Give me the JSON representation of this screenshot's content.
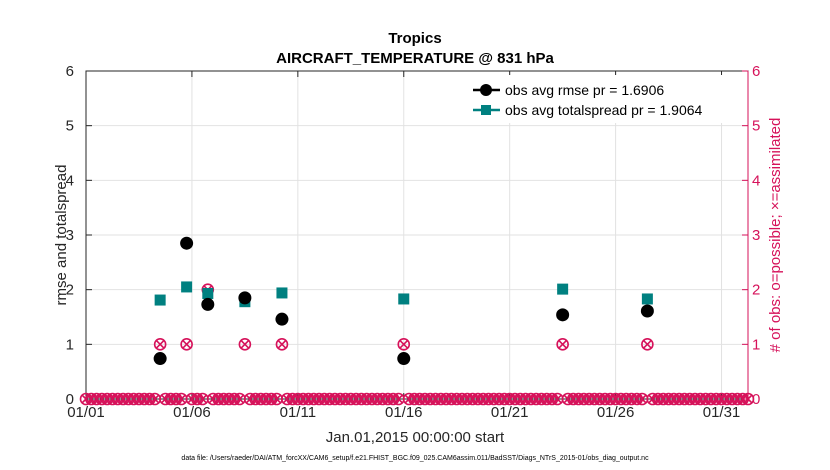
{
  "chart_data": {
    "type": "scatter",
    "title": "Tropics",
    "subtitle": "AIRCRAFT_TEMPERATURE @ 831 hPa",
    "xlabel": "Jan.01,2015 00:00:00 start",
    "ylabel": "rmse and totalspread",
    "ylabel_right": "# of obs: o=possible; ×=assimilated",
    "footnote": "data file: /Users/raeder/DAI/ATM_forcXX/CAM6_setup/f.e21.FHIST_BGC.f09_025.CAM6assim.011/BadSST/Diags_NTrS_2015-01/obs_diag_output.nc",
    "xlim": [
      0,
      31.25
    ],
    "ylim": [
      0,
      6
    ],
    "ylim_right": [
      0,
      6
    ],
    "xticks": [
      0,
      5,
      10,
      15,
      20,
      25,
      30
    ],
    "xtick_labels": [
      "01/01",
      "01/06",
      "01/11",
      "01/16",
      "01/21",
      "01/26",
      "01/31"
    ],
    "yticks": [
      0,
      1,
      2,
      3,
      4,
      5,
      6
    ],
    "ytick_labels": [
      "0",
      "1",
      "2",
      "3",
      "4",
      "5",
      "6"
    ],
    "grid": true,
    "legend_position": "top-right",
    "colors": {
      "rmse": "#000000",
      "totalspread": "#008080",
      "obs": "#d6125a"
    },
    "series": [
      {
        "name": "obs avg rmse",
        "legend_label": "obs avg rmse pr = 1.6906",
        "points": [
          [
            3.5,
            0.74
          ],
          [
            4.75,
            2.85
          ],
          [
            5.75,
            1.73
          ],
          [
            7.5,
            1.85
          ],
          [
            9.25,
            1.46
          ],
          [
            15.0,
            0.74
          ],
          [
            22.5,
            1.54
          ],
          [
            26.5,
            1.61
          ]
        ]
      },
      {
        "name": "obs avg totalspread",
        "legend_label": "obs avg totalspread pr = 1.9064",
        "points": [
          [
            3.5,
            1.81
          ],
          [
            4.75,
            2.05
          ],
          [
            5.75,
            1.93
          ],
          [
            7.5,
            1.78
          ],
          [
            9.25,
            1.94
          ],
          [
            15.0,
            1.83
          ],
          [
            22.5,
            2.01
          ],
          [
            26.5,
            1.83
          ]
        ]
      },
      {
        "name": "# of obs possible / assimilated",
        "points": [
          [
            3.5,
            1
          ],
          [
            4.75,
            1
          ],
          [
            5.75,
            2
          ],
          [
            7.5,
            1
          ],
          [
            9.25,
            1
          ],
          [
            15.0,
            1
          ],
          [
            22.5,
            1
          ],
          [
            26.5,
            1
          ]
        ]
      }
    ]
  }
}
